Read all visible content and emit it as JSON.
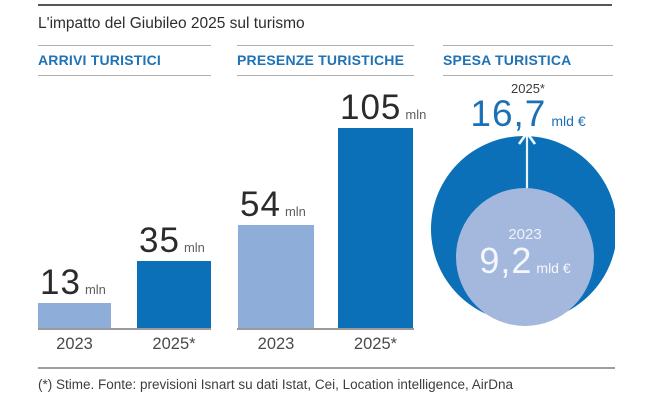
{
  "title": "L'impatto del Giubileo 2025 sul turismo",
  "footnote": "(*) Stime. Fonte: previsioni Isnart su dati Istat, Cei, Location intelligence, AirDna",
  "colors": {
    "dark_blue": "#0b70b8",
    "bar_light_blue": "#8fadd9",
    "circle_light_blue": "#a4b8dd",
    "header_blue": "#1e72b5",
    "big_number_blue": "#1b70b6",
    "arrow_white": "#ffffff"
  },
  "chart_data": [
    {
      "type": "bar",
      "title": "ARRIVI TURISTICI",
      "unit": "mln",
      "categories": [
        "2023",
        "2025*"
      ],
      "values": [
        13,
        35
      ],
      "display_values": [
        "13",
        "35"
      ],
      "colors_by_category": [
        "#8fadd9",
        "#0b70b8"
      ]
    },
    {
      "type": "bar",
      "title": "PRESENZE TURISTICHE",
      "unit": "mln",
      "categories": [
        "2023",
        "2025*"
      ],
      "values": [
        54,
        105
      ],
      "display_values": [
        "54",
        "105"
      ],
      "colors_by_category": [
        "#8fadd9",
        "#0b70b8"
      ]
    },
    {
      "type": "bubble",
      "title": "SPESA TURISTICA",
      "unit": "mld €",
      "categories": [
        "2023",
        "2025*"
      ],
      "values": [
        9.2,
        16.7
      ],
      "display_values": [
        "9,2",
        "16,7"
      ],
      "colors_by_category": [
        "#a4b8dd",
        "#0b70b8"
      ],
      "note": "nested circles, area proportional, arrow from 2023 circle to 2025 value"
    }
  ]
}
